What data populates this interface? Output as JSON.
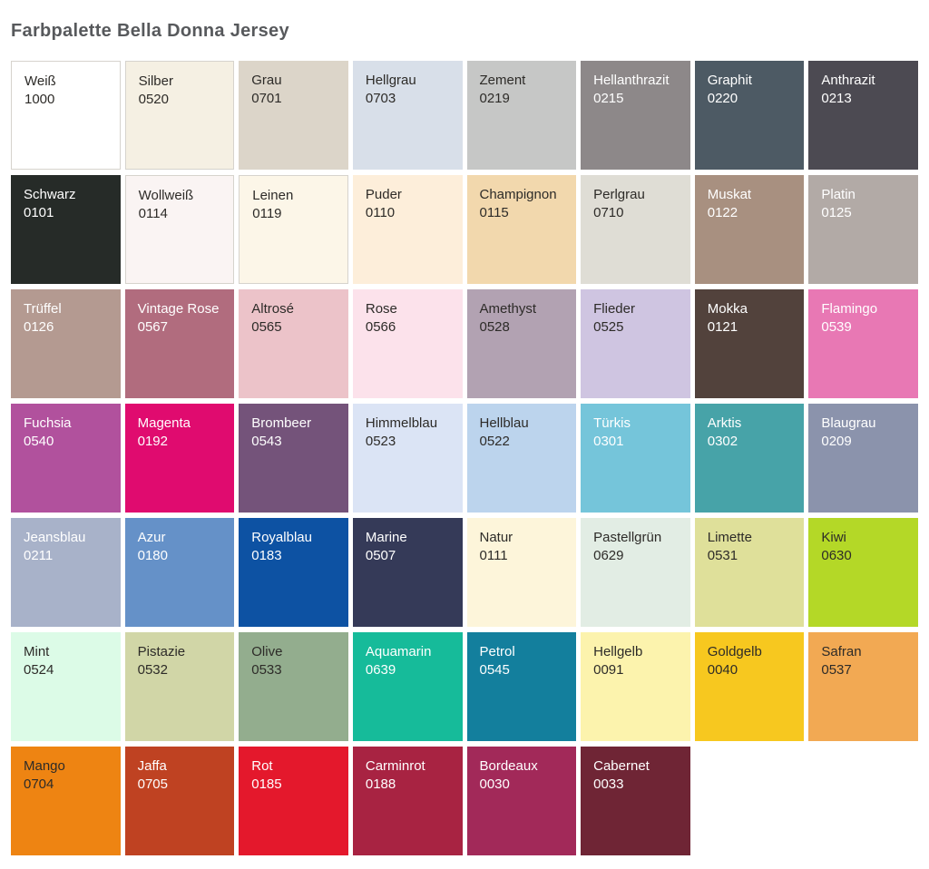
{
  "page": {
    "title": "Farbpalette Bella Donna Jersey",
    "title_color": "#57595c",
    "background": "#ffffff"
  },
  "palette": {
    "columns": 8,
    "dark_text_color": "#2d2b28",
    "light_text_color": "#ffffff",
    "border_color": "#d6d3cd",
    "swatches": [
      {
        "name": "Weiß",
        "code": "1000",
        "color": "#ffffff",
        "text": "dark",
        "border": true
      },
      {
        "name": "Silber",
        "code": "0520",
        "color": "#f5f0e3",
        "text": "dark",
        "border": true
      },
      {
        "name": "Grau",
        "code": "0701",
        "color": "#dcd5c9",
        "text": "dark",
        "border": false
      },
      {
        "name": "Hellgrau",
        "code": "0703",
        "color": "#d8dfe9",
        "text": "dark",
        "border": false
      },
      {
        "name": "Zement",
        "code": "0219",
        "color": "#c6c7c6",
        "text": "dark",
        "border": false
      },
      {
        "name": "Hellanthrazit",
        "code": "0215",
        "color": "#8d8889",
        "text": "light",
        "border": false
      },
      {
        "name": "Graphit",
        "code": "0220",
        "color": "#4d5a64",
        "text": "light",
        "border": false
      },
      {
        "name": "Anthrazit",
        "code": "0213",
        "color": "#4c4a52",
        "text": "light",
        "border": false
      },
      {
        "name": "Schwarz",
        "code": "0101",
        "color": "#262b28",
        "text": "light",
        "border": false
      },
      {
        "name": "Wollweiß",
        "code": "0114",
        "color": "#faf4f3",
        "text": "dark",
        "border": true
      },
      {
        "name": "Leinen",
        "code": "0119",
        "color": "#fcf6e8",
        "text": "dark",
        "border": true
      },
      {
        "name": "Puder",
        "code": "0110",
        "color": "#fdeeda",
        "text": "dark",
        "border": false
      },
      {
        "name": "Champignon",
        "code": "0115",
        "color": "#f2d8ad",
        "text": "dark",
        "border": false
      },
      {
        "name": "Perlgrau",
        "code": "0710",
        "color": "#dfddd5",
        "text": "dark",
        "border": false
      },
      {
        "name": "Muskat",
        "code": "0122",
        "color": "#a89080",
        "text": "light",
        "border": false
      },
      {
        "name": "Platin",
        "code": "0125",
        "color": "#b2aaa6",
        "text": "light",
        "border": false
      },
      {
        "name": "Trüffel",
        "code": "0126",
        "color": "#b49a91",
        "text": "light",
        "border": false
      },
      {
        "name": "Vintage Rose",
        "code": "0567",
        "color": "#b16c7e",
        "text": "light",
        "border": false
      },
      {
        "name": "Altrosé",
        "code": "0565",
        "color": "#ecc3c9",
        "text": "dark",
        "border": false
      },
      {
        "name": "Rose",
        "code": "0566",
        "color": "#fce2eb",
        "text": "dark",
        "border": false
      },
      {
        "name": "Amethyst",
        "code": "0528",
        "color": "#b2a2b2",
        "text": "dark",
        "border": false
      },
      {
        "name": "Flieder",
        "code": "0525",
        "color": "#cfc5e1",
        "text": "dark",
        "border": false
      },
      {
        "name": "Mokka",
        "code": "0121",
        "color": "#52423c",
        "text": "light",
        "border": false
      },
      {
        "name": "Flamingo",
        "code": "0539",
        "color": "#e878b4",
        "text": "light",
        "border": false
      },
      {
        "name": "Fuchsia",
        "code": "0540",
        "color": "#b1519d",
        "text": "light",
        "border": false
      },
      {
        "name": "Magenta",
        "code": "0192",
        "color": "#e00b6f",
        "text": "light",
        "border": false
      },
      {
        "name": "Brombeer",
        "code": "0543",
        "color": "#74537a",
        "text": "light",
        "border": false
      },
      {
        "name": "Himmelblau",
        "code": "0523",
        "color": "#dbe4f5",
        "text": "dark",
        "border": false
      },
      {
        "name": "Hellblau",
        "code": "0522",
        "color": "#bcd4ed",
        "text": "dark",
        "border": false
      },
      {
        "name": "Türkis",
        "code": "0301",
        "color": "#75c5da",
        "text": "light",
        "border": false
      },
      {
        "name": "Arktis",
        "code": "0302",
        "color": "#47a3a8",
        "text": "light",
        "border": false
      },
      {
        "name": "Blaugrau",
        "code": "0209",
        "color": "#8b93ac",
        "text": "light",
        "border": false
      },
      {
        "name": "Jeansblau",
        "code": "0211",
        "color": "#a8b2c9",
        "text": "light",
        "border": false
      },
      {
        "name": "Azur",
        "code": "0180",
        "color": "#6591c8",
        "text": "light",
        "border": false
      },
      {
        "name": "Royalblau",
        "code": "0183",
        "color": "#0d52a3",
        "text": "light",
        "border": false
      },
      {
        "name": "Marine",
        "code": "0507",
        "color": "#353a58",
        "text": "light",
        "border": false
      },
      {
        "name": "Natur",
        "code": "0111",
        "color": "#fdf5da",
        "text": "dark",
        "border": false
      },
      {
        "name": "Pastellgrün",
        "code": "0629",
        "color": "#e2ede4",
        "text": "dark",
        "border": false
      },
      {
        "name": "Limette",
        "code": "0531",
        "color": "#dfe09a",
        "text": "dark",
        "border": false
      },
      {
        "name": "Kiwi",
        "code": "0630",
        "color": "#b4d827",
        "text": "dark",
        "border": false
      },
      {
        "name": "Mint",
        "code": "0524",
        "color": "#dcfbe7",
        "text": "dark",
        "border": false
      },
      {
        "name": "Pistazie",
        "code": "0532",
        "color": "#d1d6a7",
        "text": "dark",
        "border": false
      },
      {
        "name": "Olive",
        "code": "0533",
        "color": "#93ad8e",
        "text": "dark",
        "border": false
      },
      {
        "name": "Aquamarin",
        "code": "0639",
        "color": "#16bb9a",
        "text": "light",
        "border": false
      },
      {
        "name": "Petrol",
        "code": "0545",
        "color": "#137f9d",
        "text": "light",
        "border": false
      },
      {
        "name": "Hellgelb",
        "code": "0091",
        "color": "#fcf3ad",
        "text": "dark",
        "border": false
      },
      {
        "name": "Goldgelb",
        "code": "0040",
        "color": "#f7c81f",
        "text": "dark",
        "border": false
      },
      {
        "name": "Safran",
        "code": "0537",
        "color": "#f2a953",
        "text": "dark",
        "border": false
      },
      {
        "name": "Mango",
        "code": "0704",
        "color": "#ee8412",
        "text": "dark",
        "border": false
      },
      {
        "name": "Jaffa",
        "code": "0705",
        "color": "#bf4222",
        "text": "light",
        "border": false
      },
      {
        "name": "Rot",
        "code": "0185",
        "color": "#e4182c",
        "text": "light",
        "border": false
      },
      {
        "name": "Carminrot",
        "code": "0188",
        "color": "#a82342",
        "text": "light",
        "border": false
      },
      {
        "name": "Bordeaux",
        "code": "0030",
        "color": "#a22959",
        "text": "light",
        "border": false
      },
      {
        "name": "Cabernet",
        "code": "0033",
        "color": "#6f2535",
        "text": "light",
        "border": false
      }
    ]
  }
}
